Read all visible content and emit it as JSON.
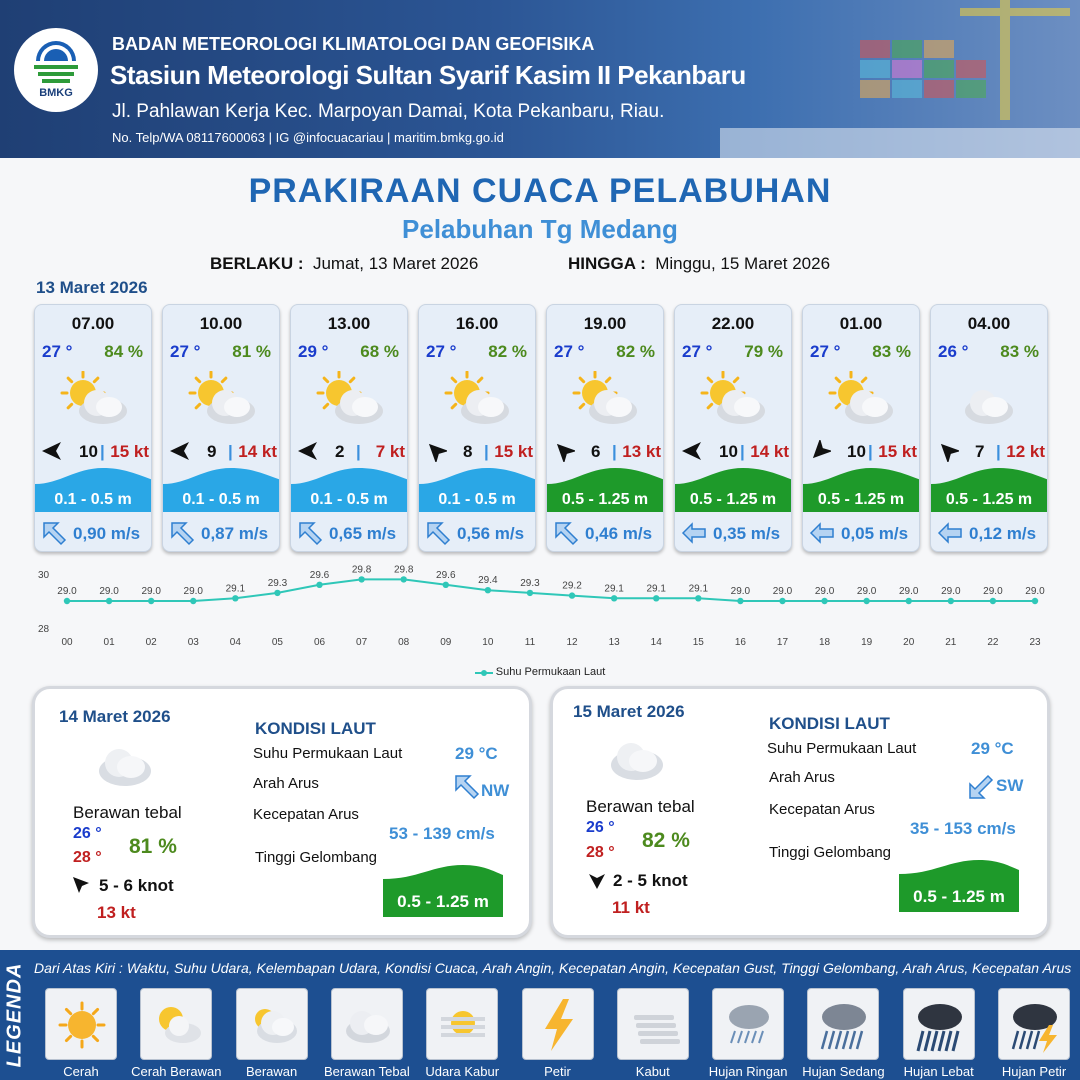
{
  "header": {
    "agency": "BADAN METEOROLOGI KLIMATOLOGI DAN GEOFISIKA",
    "station": "Stasiun Meteorologi Sultan Syarif Kasim II Pekanbaru",
    "address": "Jl. Pahlawan Kerja Kec. Marpoyan Damai, Kota Pekanbaru, Riau.",
    "contact": "No. Telp/WA 08117600063 | IG @infocuacariau | maritim.bmkg.go.id",
    "logo_text": "BMKG"
  },
  "title": "PRAKIRAAN CUACA PELABUHAN",
  "subtitle": "Pelabuhan Tg Medang",
  "validity": {
    "from_label": "BERLAKU :",
    "from_value": "Jumat, 13 Maret 2026",
    "to_label": "HINGGA :",
    "to_value": "Minggu, 15 Maret 2026"
  },
  "first_day": "13 Maret 2026",
  "forecast": [
    {
      "time": "07.00",
      "temp": "27 °",
      "hum": "84 %",
      "icon": "partly-cloudy",
      "wind_dir": "W",
      "wind": "10",
      "gust": "15 kt",
      "wave": "0.1 - 0.5 m",
      "wave_level": "low",
      "cur_dir": "NW",
      "current": "0,90 m/s"
    },
    {
      "time": "10.00",
      "temp": "27 °",
      "hum": "81 %",
      "icon": "partly-cloudy",
      "wind_dir": "W",
      "wind": "9",
      "gust": "14 kt",
      "wave": "0.1 - 0.5 m",
      "wave_level": "low",
      "cur_dir": "NW",
      "current": "0,87 m/s"
    },
    {
      "time": "13.00",
      "temp": "29 °",
      "hum": "68 %",
      "icon": "partly-cloudy",
      "wind_dir": "W",
      "wind": "2",
      "gust": "7 kt",
      "wave": "0.1 - 0.5 m",
      "wave_level": "low",
      "cur_dir": "NW",
      "current": "0,65 m/s"
    },
    {
      "time": "16.00",
      "temp": "27 °",
      "hum": "82 %",
      "icon": "cloudy",
      "wind_dir": "NW",
      "wind": "8",
      "gust": "15 kt",
      "wave": "0.1 - 0.5 m",
      "wave_level": "low",
      "cur_dir": "NW",
      "current": "0,56 m/s"
    },
    {
      "time": "19.00",
      "temp": "27 °",
      "hum": "82 %",
      "icon": "cloudy",
      "wind_dir": "NW",
      "wind": "6",
      "gust": "13 kt",
      "wave": "0.5 - 1.25 m",
      "wave_level": "mid",
      "cur_dir": "NW",
      "current": "0,46 m/s"
    },
    {
      "time": "22.00",
      "temp": "27 °",
      "hum": "79 %",
      "icon": "cloudy",
      "wind_dir": "W",
      "wind": "10",
      "gust": "14 kt",
      "wave": "0.5 - 1.25 m",
      "wave_level": "mid",
      "cur_dir": "W",
      "current": "0,35 m/s"
    },
    {
      "time": "01.00",
      "temp": "27 °",
      "hum": "83 %",
      "icon": "cloudy",
      "wind_dir": "SW",
      "wind": "10",
      "gust": "15 kt",
      "wave": "0.5 - 1.25 m",
      "wave_level": "mid",
      "cur_dir": "W",
      "current": "0,05 m/s"
    },
    {
      "time": "04.00",
      "temp": "26 °",
      "hum": "83 %",
      "icon": "thick-cloud",
      "wind_dir": "NW",
      "wind": "7",
      "gust": "12 kt",
      "wave": "0.5 - 1.25 m",
      "wave_level": "mid",
      "cur_dir": "W",
      "current": "0,12 m/s"
    }
  ],
  "chart_data": {
    "type": "line",
    "categories": [
      "00",
      "01",
      "02",
      "03",
      "04",
      "05",
      "06",
      "07",
      "08",
      "09",
      "10",
      "11",
      "12",
      "13",
      "14",
      "15",
      "16",
      "17",
      "18",
      "19",
      "20",
      "21",
      "22",
      "23"
    ],
    "series": [
      {
        "name": "Suhu Permukaan Laut",
        "values": [
          29.0,
          29.0,
          29.0,
          29.0,
          29.1,
          29.3,
          29.6,
          29.8,
          29.8,
          29.6,
          29.4,
          29.3,
          29.2,
          29.1,
          29.1,
          29.1,
          29.0,
          29.0,
          29.0,
          29.0,
          29.0,
          29.0,
          29.0,
          29.0
        ],
        "color": "#2fc7b8"
      }
    ],
    "ylim": [
      28,
      30
    ],
    "y_ticks": [
      "28",
      "30"
    ],
    "legend": "bottom-center"
  },
  "days": [
    {
      "date": "14 Maret 2026",
      "condition": "Berawan tebal",
      "tmin": "26 °",
      "tmax": "28 °",
      "hum": "81 %",
      "wind": "5 - 6 knot",
      "wind_dir": "NW",
      "gust": "13 kt",
      "kondisi_title": "KONDISI LAUT",
      "sst_label": "Suhu Permukaan Laut",
      "sst": "29 °C",
      "cur_dir_label": "Arah Arus",
      "cur_dir": "NW",
      "cur_speed_label": "Kecepatan Arus",
      "cur_speed": "53  - 139 cm/s",
      "wave_label": "Tinggi Gelombang",
      "wave": "0.5 - 1.25 m"
    },
    {
      "date": "15 Maret 2026",
      "condition": "Berawan tebal",
      "tmin": "26 °",
      "tmax": "28 °",
      "hum": "82 %",
      "wind": "2 - 5 knot",
      "wind_dir": "N",
      "gust": "11 kt",
      "kondisi_title": "KONDISI LAUT",
      "sst_label": "Suhu Permukaan Laut",
      "sst": "29 °C",
      "cur_dir_label": "Arah Arus",
      "cur_dir": "SW",
      "cur_speed_label": "Kecepatan Arus",
      "cur_speed": "35  - 153 cm/s",
      "wave_label": "Tinggi Gelombang",
      "wave": "0.5 - 1.25 m"
    }
  ],
  "legend": {
    "side_label": "LEGENDA",
    "description": "Dari Atas Kiri : Waktu, Suhu Udara, Kelembapan Udara, Kondisi Cuaca, Arah Angin, Kecepatan Angin, Kecepatan Gust, Tinggi Gelombang, Arah Arus, Kecepatan Arus",
    "items": [
      {
        "label": "Cerah",
        "icon": "sun-icon"
      },
      {
        "label": "Cerah Berawan",
        "icon": "sun-cloud-icon"
      },
      {
        "label": "Berawan",
        "icon": "cloud-sun-icon"
      },
      {
        "label": "Berawan Tebal",
        "icon": "thick-cloud-icon"
      },
      {
        "label": "Udara Kabur",
        "icon": "haze-icon"
      },
      {
        "label": "Petir",
        "icon": "lightning-icon"
      },
      {
        "label": "Kabut",
        "icon": "fog-icon"
      },
      {
        "label": "Hujan Ringan",
        "icon": "light-rain-icon"
      },
      {
        "label": "Hujan Sedang",
        "icon": "moderate-rain-icon"
      },
      {
        "label": "Hujan Lebat",
        "icon": "heavy-rain-icon"
      },
      {
        "label": "Hujan Petir",
        "icon": "thunderstorm-icon"
      }
    ]
  },
  "colors": {
    "wave_low": "#2aa7e6",
    "wave_mid": "#1e9a2a",
    "accent": "#1f66b3",
    "temp": "#1a3ccc",
    "gust": "#c02020",
    "humidity": "#4d8a1e"
  }
}
